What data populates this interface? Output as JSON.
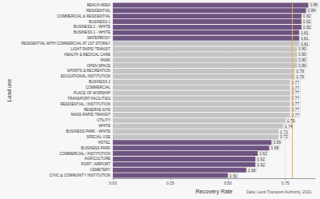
{
  "chart_data": {
    "type": "bar",
    "orientation": "horizontal",
    "x_label": "Recovery Rate",
    "y_label": "Land use",
    "caption": "Data: Land Transport Authority, 2021.",
    "categories": [
      "BEACH AREA",
      "RESIDENTIAL",
      "COMMERCIAL & RESIDENTIAL",
      "BUSINESS 1",
      "BUSINESS 2 - WHITE",
      "BUSINESS 1 - WHITE",
      "WATERBODY",
      "RESIDENTIAL WITH COMMERCIAL AT 1ST STOREY",
      "LIGHT RAPID TRANSIT",
      "HEALTH & MEDICAL CARE",
      "PARK",
      "OPEN SPACE",
      "SPORTS & RECREATION",
      "EDUCATIONAL INSTITUTION",
      "BUSINESS 2",
      "COMMERCIAL",
      "PLACE OF WORSHIP",
      "TRANSPORT FACILITIES",
      "RESIDENTIAL / INSTITUTION",
      "RESERVE SITE",
      "MASS RAPID TRANSIT",
      "UTILITY",
      "WHITE",
      "BUSINESS PARK - WHITE",
      "SPECIAL USE",
      "HOTEL",
      "BUSINESS PARK",
      "COMMERCIAL / INSTITUTION",
      "AGRICULTURE",
      "PORT / AIRPORT",
      "CEMETERY",
      "CIVIC & COMMUNITY INSTITUTION"
    ],
    "values": [
      0.85,
      0.84,
      0.82,
      0.82,
      0.82,
      0.81,
      0.81,
      0.81,
      0.8,
      0.8,
      0.8,
      0.8,
      0.79,
      0.79,
      0.77,
      0.77,
      0.77,
      0.77,
      0.77,
      0.77,
      0.77,
      0.75,
      0.74,
      0.72,
      0.72,
      0.69,
      0.68,
      0.63,
      0.62,
      0.62,
      0.58,
      0.5
    ],
    "value_labels": [
      "0.85",
      "0.84",
      "0.82",
      "0.82",
      "0.82",
      "0.81",
      "0.81",
      "0.81",
      "0.80",
      "0.80",
      "0.80",
      "0.80",
      "0.79",
      "0.79",
      "0.77",
      "0.77",
      "0.77",
      "0.77",
      "0.77",
      "0.77",
      "0.77",
      "0.75",
      "0.74",
      "0.72",
      "0.72",
      "0.69",
      "0.68",
      "0.63",
      "0.62",
      "0.62",
      "0.58",
      "0.50"
    ],
    "colors": [
      "#6e5481",
      "#6e5481",
      "#6e5481",
      "#6e5481",
      "#6e5481",
      "#6e5481",
      "#6e5481",
      "#c4c4c4",
      "#c4c4c4",
      "#c4c4c4",
      "#c4c4c4",
      "#c4c4c4",
      "#c4c4c4",
      "#c4c4c4",
      "#c4c4c4",
      "#c4c4c4",
      "#c4c4c4",
      "#c4c4c4",
      "#c4c4c4",
      "#c4c4c4",
      "#c4c4c4",
      "#c4c4c4",
      "#c4c4c4",
      "#c4c4c4",
      "#c4c4c4",
      "#6e5481",
      "#6e5481",
      "#6e5481",
      "#6e5481",
      "#6e5481",
      "#6e5481",
      "#6e5481"
    ],
    "data_labels": true,
    "reference_line": {
      "value": 0.78,
      "color": "#e8b04a"
    },
    "xlim": [
      0,
      0.88
    ],
    "xticks": [
      {
        "value": 0,
        "label": "0.00"
      },
      0.25,
      {
        "value": 0.5,
        "label": "0.50"
      },
      0.75
    ],
    "grid": true
  }
}
